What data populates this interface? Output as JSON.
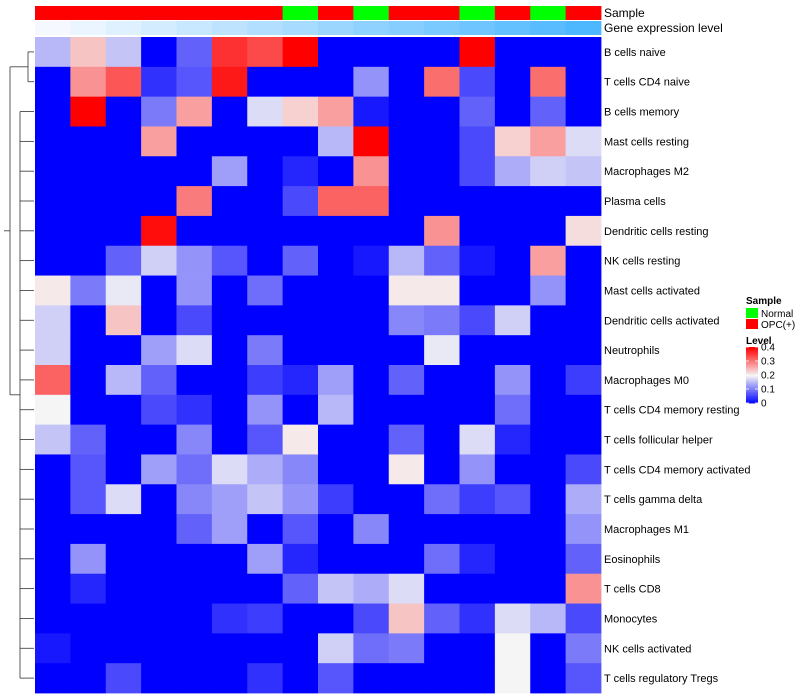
{
  "chart_data": {
    "type": "heatmap",
    "annotation_labels": {
      "sample": "Sample",
      "expression": "Gene expression level"
    },
    "rows": [
      "B cells naive",
      "T cells CD4 naive",
      "B cells memory",
      "Mast cells resting",
      "Macrophages M2",
      "Plasma cells",
      "Dendritic cells resting",
      "NK cells resting",
      "Mast cells activated",
      "Dendritic cells activated",
      "Neutrophils",
      "Macrophages M0",
      "T cells CD4 memory resting",
      "T cells follicular helper",
      "T cells CD4 memory activated",
      "T cells gamma delta",
      "Macrophages M1",
      "Eosinophils",
      "T cells CD8",
      "Monocytes",
      "NK cells activated",
      "T cells regulatory  Tregs"
    ],
    "column_samples": [
      "OPC(+)",
      "OPC(+)",
      "OPC(+)",
      "OPC(+)",
      "OPC(+)",
      "OPC(+)",
      "OPC(+)",
      "Normal",
      "OPC(+)",
      "Normal",
      "OPC(+)",
      "OPC(+)",
      "Normal",
      "OPC(+)",
      "Normal",
      "OPC(+)"
    ],
    "column_expression": [
      0.0,
      0.03,
      0.06,
      0.09,
      0.12,
      0.15,
      0.18,
      0.21,
      0.24,
      0.27,
      0.3,
      0.33,
      0.36,
      0.39,
      0.42,
      0.45
    ],
    "values": [
      [
        0.15,
        0.24,
        0.16,
        0,
        0.08,
        0.36,
        0.34,
        0.4,
        0,
        0,
        0,
        0,
        0.4,
        0,
        0,
        0
      ],
      [
        0,
        0.28,
        0.33,
        0.04,
        0.07,
        0.38,
        0,
        0,
        0,
        0.12,
        0,
        0.31,
        0.06,
        0,
        0.31,
        0
      ],
      [
        0,
        0.4,
        0,
        0.1,
        0.27,
        0,
        0.18,
        0.23,
        0.27,
        0.02,
        0,
        0,
        0.08,
        0,
        0.08,
        0
      ],
      [
        0,
        0,
        0,
        0.27,
        0,
        0,
        0,
        0,
        0.15,
        0.4,
        0,
        0,
        0.06,
        0.23,
        0.27,
        0.18
      ],
      [
        0,
        0,
        0,
        0,
        0,
        0.13,
        0,
        0.03,
        0,
        0.28,
        0,
        0,
        0.06,
        0.14,
        0.17,
        0.16
      ],
      [
        0,
        0,
        0,
        0,
        0.3,
        0,
        0,
        0.06,
        0.32,
        0.32,
        0,
        0,
        0,
        0,
        0,
        0
      ],
      [
        0,
        0,
        0,
        0.39,
        0,
        0,
        0,
        0,
        0,
        0,
        0,
        0.28,
        0,
        0,
        0,
        0.22
      ],
      [
        0,
        0,
        0.08,
        0.17,
        0.12,
        0.07,
        0,
        0.08,
        0,
        0.02,
        0.15,
        0.08,
        0.02,
        0,
        0.27,
        0
      ],
      [
        0.21,
        0.1,
        0.19,
        0,
        0.12,
        0,
        0.09,
        0,
        0,
        0,
        0.21,
        0.21,
        0,
        0,
        0.12,
        0
      ],
      [
        0.17,
        0,
        0.24,
        0,
        0.06,
        0,
        0,
        0,
        0,
        0,
        0.11,
        0.1,
        0.06,
        0.17,
        0,
        0
      ],
      [
        0.17,
        0,
        0,
        0.13,
        0.18,
        0,
        0.1,
        0,
        0,
        0,
        0,
        0.19,
        0,
        0,
        0,
        0
      ],
      [
        0.32,
        0,
        0.15,
        0.08,
        0,
        0,
        0.05,
        0.03,
        0.13,
        0,
        0.08,
        0,
        0,
        0.12,
        0,
        0.05
      ],
      [
        0.2,
        0,
        0,
        0.06,
        0.04,
        0,
        0.12,
        0,
        0.15,
        0,
        0,
        0,
        0,
        0.09,
        0,
        0
      ],
      [
        0.16,
        0.08,
        0,
        0,
        0.11,
        0,
        0.07,
        0.21,
        0,
        0,
        0.08,
        0,
        0.18,
        0.03,
        0,
        0
      ],
      [
        0,
        0.07,
        0,
        0.13,
        0.09,
        0.18,
        0.14,
        0.11,
        0,
        0,
        0.21,
        0,
        0.12,
        0,
        0,
        0.06
      ],
      [
        0,
        0.07,
        0.18,
        0,
        0.11,
        0.13,
        0.16,
        0.12,
        0.05,
        0,
        0,
        0.09,
        0.05,
        0.07,
        0,
        0.14
      ],
      [
        0,
        0,
        0,
        0,
        0.08,
        0.13,
        0,
        0.07,
        0,
        0.11,
        0,
        0,
        0,
        0,
        0,
        0.12
      ],
      [
        0,
        0.12,
        0,
        0,
        0,
        0,
        0.13,
        0.03,
        0,
        0,
        0,
        0.09,
        0.03,
        0,
        0,
        0.08
      ],
      [
        0,
        0.03,
        0,
        0,
        0,
        0,
        0,
        0.08,
        0.16,
        0.14,
        0.18,
        0,
        0,
        0,
        0,
        0.28
      ],
      [
        0,
        0,
        0,
        0,
        0,
        0.04,
        0.05,
        0,
        0,
        0.06,
        0.24,
        0.08,
        0.04,
        0.18,
        0.15,
        0.06
      ],
      [
        0.02,
        0,
        0,
        0,
        0,
        0,
        0,
        0,
        0.17,
        0.09,
        0.1,
        0,
        0,
        0.2,
        0,
        0.1
      ],
      [
        0,
        0,
        0.06,
        0,
        0,
        0,
        0.04,
        0,
        0.07,
        0,
        0,
        0,
        0,
        0.2,
        0,
        0.07
      ]
    ],
    "legend": {
      "sample_title": "Sample",
      "sample_entries": [
        {
          "label": "Normal",
          "color": "#00ff00"
        },
        {
          "label": "OPC(+)",
          "color": "#ff0000"
        }
      ],
      "level_title": "Level",
      "level_ticks": [
        0.4,
        0.3,
        0.2,
        0.1,
        0
      ],
      "level_range": [
        0,
        0.4
      ]
    },
    "colors": {
      "low": "#0000ff",
      "mid": "#f5f5f5",
      "high": "#ff0000",
      "normal": "#00ff00",
      "opc": "#ff0000",
      "expr_low": "#f5f9ff",
      "expr_high": "#4db8ff"
    }
  }
}
